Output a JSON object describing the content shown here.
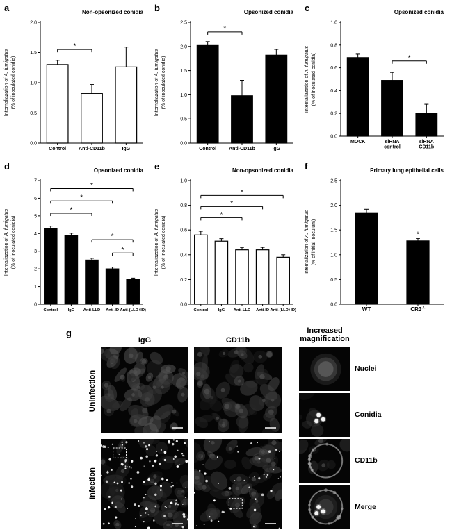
{
  "chart_data": {
    "a": {
      "letter": "a",
      "type": "bar",
      "title": "Non-opsonized conidia",
      "ylabel_prefix": "Internaliazation of ",
      "ylabel_italic": "A. fumigatus",
      "ylabel_line2": "(% of inoculated conidia)",
      "ylim": [
        0,
        2.0
      ],
      "yticks": [
        0,
        0.5,
        1.0,
        1.5,
        2.0
      ],
      "ydecimals": 1,
      "categories": [
        "Control",
        "Anti-CD11b",
        "IgG"
      ],
      "values": [
        1.3,
        0.82,
        1.26
      ],
      "errors": [
        0.07,
        0.15,
        0.33
      ],
      "bar_fill": "#ffffff",
      "brackets": [
        {
          "from": 0,
          "to": 1,
          "y": 1.55,
          "label": "*"
        }
      ],
      "stars": []
    },
    "b": {
      "letter": "b",
      "type": "bar",
      "title": "Opsonized conidia",
      "ylabel_prefix": "Internaliazation of ",
      "ylabel_italic": "A. fumigatus",
      "ylabel_line2": "(% of inoculated conidia)",
      "ylim": [
        0,
        2.5
      ],
      "yticks": [
        0,
        0.5,
        1.0,
        1.5,
        2.0,
        2.5
      ],
      "ydecimals": 1,
      "categories": [
        "Control",
        "Anti-CD11b",
        "IgG"
      ],
      "values": [
        2.02,
        0.98,
        1.82
      ],
      "errors": [
        0.08,
        0.32,
        0.12
      ],
      "bar_fill": "#000000",
      "brackets": [
        {
          "from": 0,
          "to": 1,
          "y": 2.3,
          "label": "*"
        }
      ],
      "stars": []
    },
    "c": {
      "letter": "c",
      "type": "bar",
      "title": "Opsonized conidia",
      "ylabel_prefix": "Internaliazation of ",
      "ylabel_italic": "A. fumigatus",
      "ylabel_line2": "(% of inoculated conidia)",
      "ylim": [
        0,
        1.0
      ],
      "yticks": [
        0,
        0.2,
        0.4,
        0.6,
        0.8,
        1.0
      ],
      "ydecimals": 1,
      "categories": [
        "MOCK",
        "siRNA\ncontrol",
        "siRNA\nCD11b"
      ],
      "values": [
        0.69,
        0.49,
        0.2
      ],
      "errors": [
        0.03,
        0.07,
        0.08
      ],
      "bar_fill": "#000000",
      "brackets": [
        {
          "from": 1,
          "to": 2,
          "y": 0.66,
          "label": "*"
        }
      ],
      "stars": []
    },
    "d": {
      "letter": "d",
      "type": "bar",
      "title": "Opsonized conidia",
      "ylabel_prefix": "Internaliazation of ",
      "ylabel_italic": "A. fumigatus",
      "ylabel_line2": "(% of inoculated conidia)",
      "ylim": [
        0,
        7
      ],
      "yticks": [
        0,
        1,
        2,
        3,
        4,
        5,
        6,
        7
      ],
      "ydecimals": 0,
      "categories": [
        "Control",
        "IgG",
        "Anti-LLD",
        "Anti-ID",
        "Anti-(LLD+ID)"
      ],
      "values": [
        4.3,
        3.9,
        2.5,
        2.0,
        1.4
      ],
      "errors": [
        0.12,
        0.12,
        0.1,
        0.1,
        0.08
      ],
      "bar_fill": "#000000",
      "brackets": [
        {
          "from": 0,
          "to": 2,
          "y": 5.15,
          "label": "*"
        },
        {
          "from": 0,
          "to": 3,
          "y": 5.85,
          "label": "*"
        },
        {
          "from": 0,
          "to": 4,
          "y": 6.55,
          "label": "*"
        },
        {
          "from": 2,
          "to": 4,
          "y": 3.65,
          "label": "*"
        },
        {
          "from": 3,
          "to": 4,
          "y": 2.9,
          "label": "*"
        }
      ],
      "stars": []
    },
    "e": {
      "letter": "e",
      "type": "bar",
      "title": "Non-opsonized conidia",
      "ylabel_prefix": "Internaliazation of ",
      "ylabel_italic": "A. fumigatus",
      "ylabel_line2": "(% of inoculated conidia)",
      "ylim": [
        0,
        1.0
      ],
      "yticks": [
        0,
        0.2,
        0.4,
        0.6,
        0.8,
        1.0
      ],
      "ydecimals": 1,
      "categories": [
        "Control",
        "IgG",
        "Anti-LLD",
        "Anti-ID",
        "Anti-(LLD+ID)"
      ],
      "values": [
        0.56,
        0.51,
        0.44,
        0.44,
        0.38
      ],
      "errors": [
        0.03,
        0.02,
        0.02,
        0.02,
        0.02
      ],
      "bar_fill": "#ffffff",
      "brackets": [
        {
          "from": 0,
          "to": 2,
          "y": 0.7,
          "label": "*"
        },
        {
          "from": 0,
          "to": 3,
          "y": 0.79,
          "label": "*"
        },
        {
          "from": 0,
          "to": 4,
          "y": 0.88,
          "label": "*"
        }
      ],
      "stars": []
    },
    "f": {
      "letter": "f",
      "type": "bar",
      "title": "Primary lung epithelial cells",
      "ylabel_prefix": "Internalization of ",
      "ylabel_italic": "A. fumigatus",
      "ylabel_line2": "(% of initial inoculum)",
      "ylim": [
        0,
        2.5
      ],
      "yticks": [
        0,
        0.5,
        1.0,
        1.5,
        2.0,
        2.5
      ],
      "ydecimals": 1,
      "categories": [
        "WT",
        {
          "text": "CR3",
          "sup": "-/-"
        }
      ],
      "values": [
        1.85,
        1.28
      ],
      "errors": [
        0.07,
        0.05
      ],
      "bar_fill": "#000000",
      "brackets": [],
      "stars": [
        {
          "index": 1,
          "label": "*"
        }
      ]
    }
  },
  "panel_g": {
    "letter": "g",
    "columns": [
      "IgG",
      "CD11b"
    ],
    "mag_header_line1": "Increased",
    "mag_header_line2": "magnification",
    "rows": [
      "Uninfection",
      "Infection"
    ],
    "mag_labels": [
      "Nuclei",
      "Conidia",
      "CD11b",
      "Merge"
    ]
  }
}
